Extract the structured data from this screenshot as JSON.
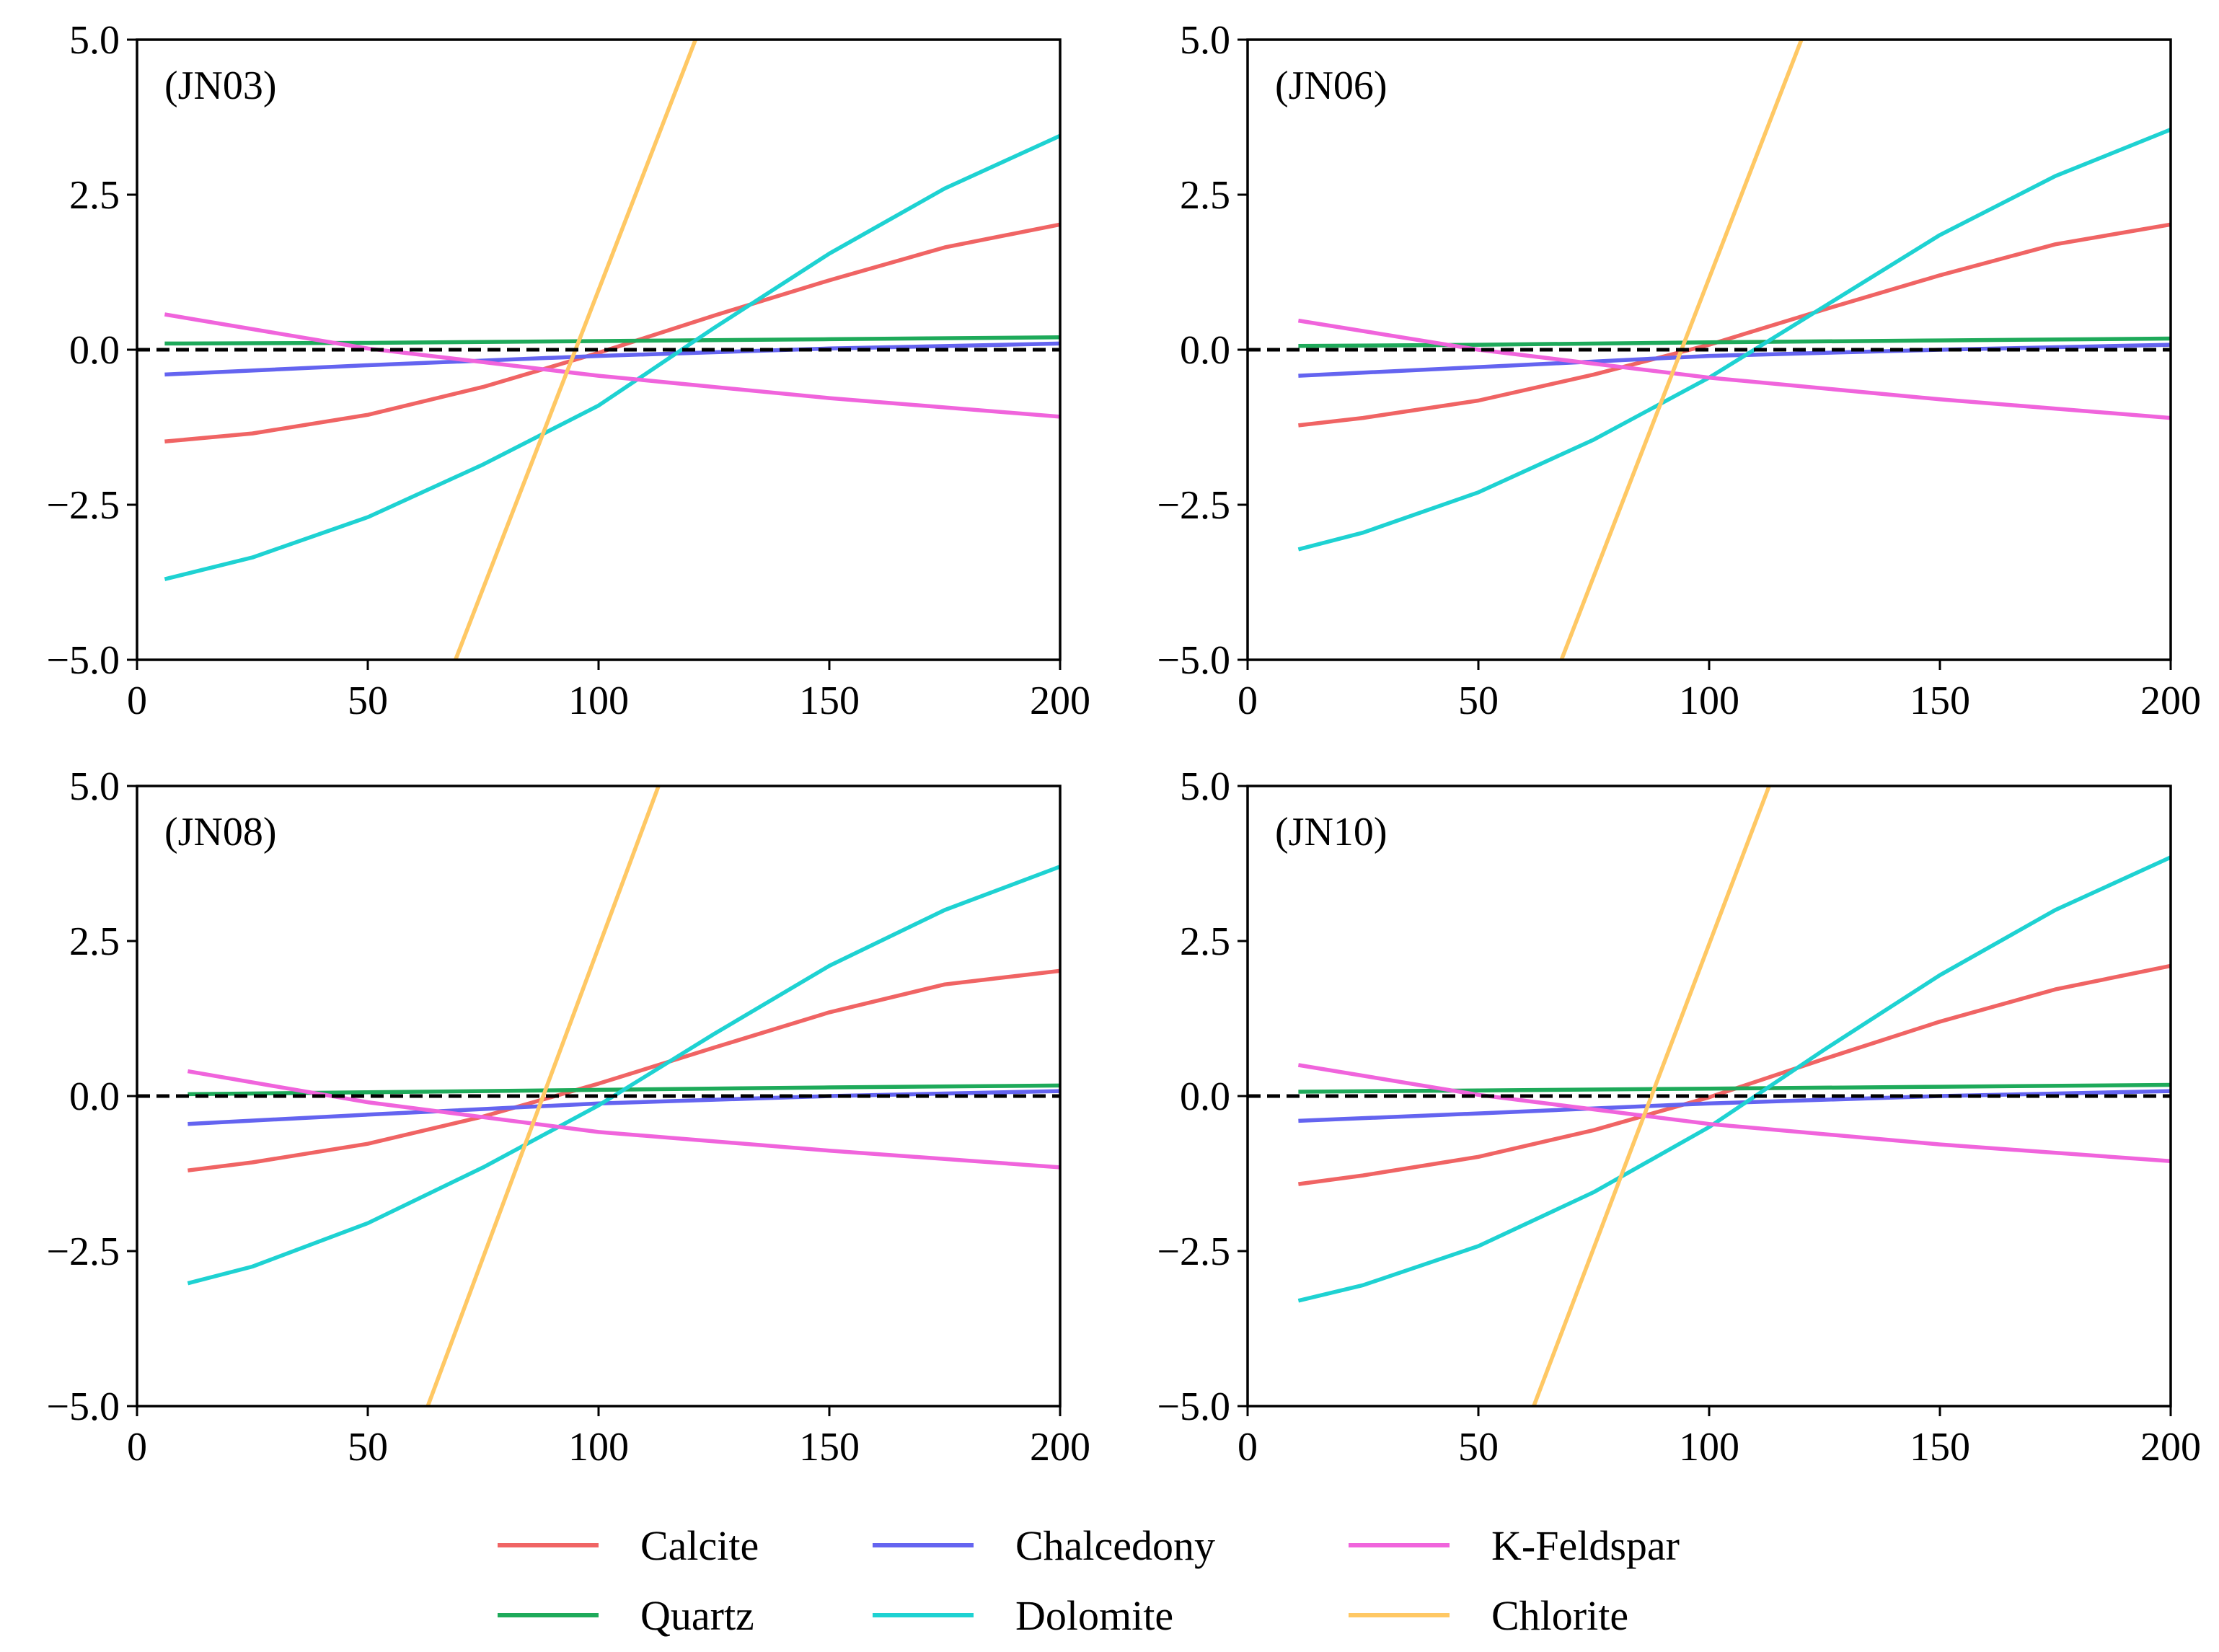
{
  "chart_data": [
    {
      "type": "line",
      "panel_label": "(JN03)",
      "xlim": [
        0,
        200
      ],
      "ylim": [
        -5.0,
        5.0
      ],
      "xticks": [
        "0",
        "50",
        "100",
        "150",
        "200"
      ],
      "yticks": [
        "5.0",
        "2.5",
        "0.0",
        "−2.5",
        "−5.0"
      ],
      "reference_line": {
        "y": 0.0,
        "style": "dashed",
        "color": "#000000"
      },
      "series": [
        {
          "name": "Calcite",
          "color": "#f06464",
          "x": [
            6,
            25,
            50,
            75,
            100,
            125,
            150,
            175,
            200
          ],
          "y": [
            -1.48,
            -1.35,
            -1.05,
            -0.6,
            -0.05,
            0.55,
            1.12,
            1.65,
            2.02
          ]
        },
        {
          "name": "Quartz",
          "color": "#1eaa5a",
          "x": [
            6,
            50,
            100,
            150,
            200
          ],
          "y": [
            0.1,
            0.11,
            0.14,
            0.17,
            0.2
          ]
        },
        {
          "name": "Chalcedony",
          "color": "#6464f0",
          "x": [
            6,
            50,
            100,
            150,
            200
          ],
          "y": [
            -0.4,
            -0.25,
            -0.1,
            0.02,
            0.1
          ]
        },
        {
          "name": "Dolomite",
          "color": "#1ed2d2",
          "x": [
            6,
            25,
            50,
            75,
            100,
            125,
            150,
            175,
            200
          ],
          "y": [
            -3.7,
            -3.35,
            -2.7,
            -1.85,
            -0.9,
            0.35,
            1.55,
            2.6,
            3.45
          ]
        },
        {
          "name": "K-Feldspar",
          "color": "#f064dc",
          "x": [
            6,
            50,
            100,
            150,
            200
          ],
          "y": [
            0.57,
            0.02,
            -0.42,
            -0.78,
            -1.08
          ]
        },
        {
          "name": "Chlorite",
          "color": "#ffc864",
          "x": [
            69,
            121
          ],
          "y": [
            -5.0,
            5.0
          ]
        }
      ]
    },
    {
      "type": "line",
      "panel_label": "(JN06)",
      "xlim": [
        0,
        200
      ],
      "ylim": [
        -5.0,
        5.0
      ],
      "xticks": [
        "0",
        "50",
        "100",
        "150",
        "200"
      ],
      "yticks": [
        "5.0",
        "2.5",
        "0.0",
        "−2.5",
        "−5.0"
      ],
      "reference_line": {
        "y": 0.0,
        "style": "dashed",
        "color": "#000000"
      },
      "series": [
        {
          "name": "Calcite",
          "color": "#f06464",
          "x": [
            11,
            25,
            50,
            75,
            100,
            125,
            150,
            175,
            200
          ],
          "y": [
            -1.22,
            -1.1,
            -0.82,
            -0.4,
            0.08,
            0.65,
            1.2,
            1.7,
            2.02
          ]
        },
        {
          "name": "Quartz",
          "color": "#1eaa5a",
          "x": [
            11,
            50,
            100,
            150,
            200
          ],
          "y": [
            0.06,
            0.08,
            0.12,
            0.15,
            0.18
          ]
        },
        {
          "name": "Chalcedony",
          "color": "#6464f0",
          "x": [
            11,
            50,
            100,
            150,
            200
          ],
          "y": [
            -0.42,
            -0.28,
            -0.1,
            0.0,
            0.08
          ]
        },
        {
          "name": "Dolomite",
          "color": "#1ed2d2",
          "x": [
            11,
            25,
            50,
            75,
            100,
            125,
            150,
            175,
            200
          ],
          "y": [
            -3.22,
            -2.95,
            -2.3,
            -1.45,
            -0.45,
            0.7,
            1.85,
            2.8,
            3.55
          ]
        },
        {
          "name": "K-Feldspar",
          "color": "#f064dc",
          "x": [
            11,
            50,
            100,
            150,
            200
          ],
          "y": [
            0.47,
            0.0,
            -0.45,
            -0.8,
            -1.1
          ]
        },
        {
          "name": "Chlorite",
          "color": "#ffc864",
          "x": [
            68,
            120
          ],
          "y": [
            -5.0,
            5.0
          ]
        }
      ]
    },
    {
      "type": "line",
      "panel_label": "(JN08)",
      "xlim": [
        0,
        200
      ],
      "ylim": [
        -5.0,
        5.0
      ],
      "xticks": [
        "0",
        "50",
        "100",
        "150",
        "200"
      ],
      "yticks": [
        "5.0",
        "2.5",
        "0.0",
        "−2.5",
        "−5.0"
      ],
      "reference_line": {
        "y": 0.0,
        "style": "dashed",
        "color": "#000000"
      },
      "series": [
        {
          "name": "Calcite",
          "color": "#f06464",
          "x": [
            11,
            25,
            50,
            75,
            100,
            125,
            150,
            175,
            200
          ],
          "y": [
            -1.2,
            -1.07,
            -0.77,
            -0.33,
            0.2,
            0.78,
            1.35,
            1.8,
            2.02
          ]
        },
        {
          "name": "Quartz",
          "color": "#1eaa5a",
          "x": [
            11,
            50,
            100,
            150,
            200
          ],
          "y": [
            0.03,
            0.06,
            0.1,
            0.14,
            0.17
          ]
        },
        {
          "name": "Chalcedony",
          "color": "#6464f0",
          "x": [
            11,
            50,
            100,
            150,
            200
          ],
          "y": [
            -0.45,
            -0.3,
            -0.12,
            0.0,
            0.08
          ]
        },
        {
          "name": "Dolomite",
          "color": "#1ed2d2",
          "x": [
            11,
            25,
            50,
            75,
            100,
            125,
            150,
            175,
            200
          ],
          "y": [
            -3.02,
            -2.75,
            -2.05,
            -1.15,
            -0.15,
            1.0,
            2.1,
            3.0,
            3.7
          ]
        },
        {
          "name": "K-Feldspar",
          "color": "#f064dc",
          "x": [
            11,
            50,
            100,
            150,
            200
          ],
          "y": [
            0.4,
            -0.1,
            -0.58,
            -0.88,
            -1.15
          ]
        },
        {
          "name": "Chlorite",
          "color": "#ffc864",
          "x": [
            63,
            113
          ],
          "y": [
            -5.0,
            5.0
          ]
        }
      ]
    },
    {
      "type": "line",
      "panel_label": "(JN10)",
      "xlim": [
        0,
        200
      ],
      "ylim": [
        -5.0,
        5.0
      ],
      "xticks": [
        "0",
        "50",
        "100",
        "150",
        "200"
      ],
      "yticks": [
        "5.0",
        "2.5",
        "0.0",
        "−2.5",
        "−5.0"
      ],
      "reference_line": {
        "y": 0.0,
        "style": "dashed",
        "color": "#000000"
      },
      "series": [
        {
          "name": "Calcite",
          "color": "#f06464",
          "x": [
            11,
            25,
            50,
            75,
            100,
            125,
            150,
            175,
            200
          ],
          "y": [
            -1.42,
            -1.28,
            -0.98,
            -0.55,
            -0.02,
            0.6,
            1.2,
            1.72,
            2.1
          ]
        },
        {
          "name": "Quartz",
          "color": "#1eaa5a",
          "x": [
            11,
            50,
            100,
            150,
            200
          ],
          "y": [
            0.07,
            0.09,
            0.12,
            0.15,
            0.18
          ]
        },
        {
          "name": "Chalcedony",
          "color": "#6464f0",
          "x": [
            11,
            50,
            100,
            150,
            200
          ],
          "y": [
            -0.4,
            -0.28,
            -0.12,
            0.0,
            0.08
          ]
        },
        {
          "name": "Dolomite",
          "color": "#1ed2d2",
          "x": [
            11,
            25,
            50,
            75,
            100,
            125,
            150,
            175,
            200
          ],
          "y": [
            -3.3,
            -3.05,
            -2.42,
            -1.55,
            -0.5,
            0.75,
            1.95,
            3.0,
            3.85
          ]
        },
        {
          "name": "K-Feldspar",
          "color": "#f064dc",
          "x": [
            11,
            50,
            100,
            150,
            200
          ],
          "y": [
            0.5,
            0.02,
            -0.45,
            -0.78,
            -1.05
          ]
        },
        {
          "name": "Chlorite",
          "color": "#ffc864",
          "x": [
            62,
            113
          ],
          "y": [
            -5.0,
            5.0
          ]
        }
      ]
    }
  ],
  "legend": {
    "placement": "bottom-center",
    "items": [
      {
        "name": "Calcite",
        "color": "#f06464"
      },
      {
        "name": "Chalcedony",
        "color": "#6464f0"
      },
      {
        "name": "K-Feldspar",
        "color": "#f064dc"
      },
      {
        "name": "Quartz",
        "color": "#1eaa5a"
      },
      {
        "name": "Dolomite",
        "color": "#1ed2d2"
      },
      {
        "name": "Chlorite",
        "color": "#ffc864"
      }
    ]
  }
}
